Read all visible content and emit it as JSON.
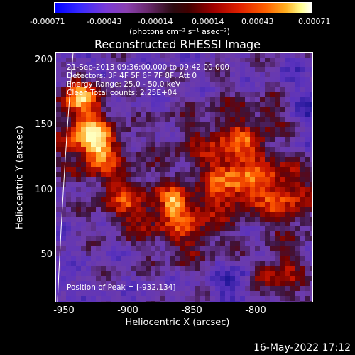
{
  "colorbar": {
    "ticks": [
      "-0.00071",
      "-0.00043",
      "-0.00014",
      "0.00014",
      "0.00043",
      "0.00071"
    ],
    "units": "(photons cm⁻² s⁻¹ asec⁻²)"
  },
  "plot": {
    "title": "Reconstructed RHESSI Image",
    "time_range": "21-Sep-2013 09:36:00.000 to 09:42:00.000",
    "detectors": "Detectors: 3F 4F 5F 6F 7F 8F, Att 0",
    "energy_range": "Energy Range: 25.0 - 50.0 keV",
    "clean_counts": "Clean     Total counts: 2.25E+04",
    "peak_position": "Position of Peak = [-932,134]",
    "xlabel": "Heliocentric X (arcsec)",
    "ylabel": "Heliocentric Y (arcsec)",
    "xticks": [
      "-950",
      "-900",
      "-850",
      "-800"
    ],
    "yticks": [
      "200",
      "150",
      "100",
      "50"
    ]
  },
  "footer": {
    "date": "16-May-2022 17:12"
  }
}
